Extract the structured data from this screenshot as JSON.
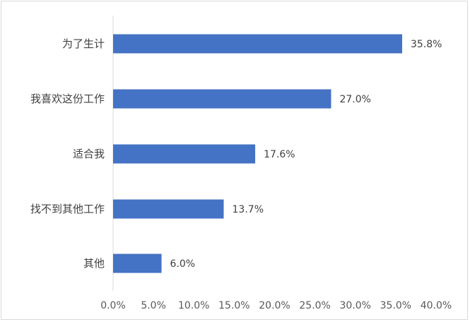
{
  "chart_data": {
    "type": "bar",
    "orientation": "horizontal",
    "categories": [
      "为了生计",
      "我喜欢这份工作",
      "适合我",
      "找不到其他工作",
      "其他"
    ],
    "values": [
      35.8,
      27.0,
      17.6,
      13.7,
      6.0
    ],
    "data_labels": [
      "35.8%",
      "27.0%",
      "17.6%",
      "13.7%",
      "6.0%"
    ],
    "x_ticks": [
      "0.0%",
      "5.0%",
      "10.0%",
      "15.0%",
      "20.0%",
      "25.0%",
      "30.0%",
      "35.0%",
      "40.0%"
    ],
    "xlim": [
      0,
      40
    ],
    "grid": false,
    "bar_color": "#4472c4"
  }
}
